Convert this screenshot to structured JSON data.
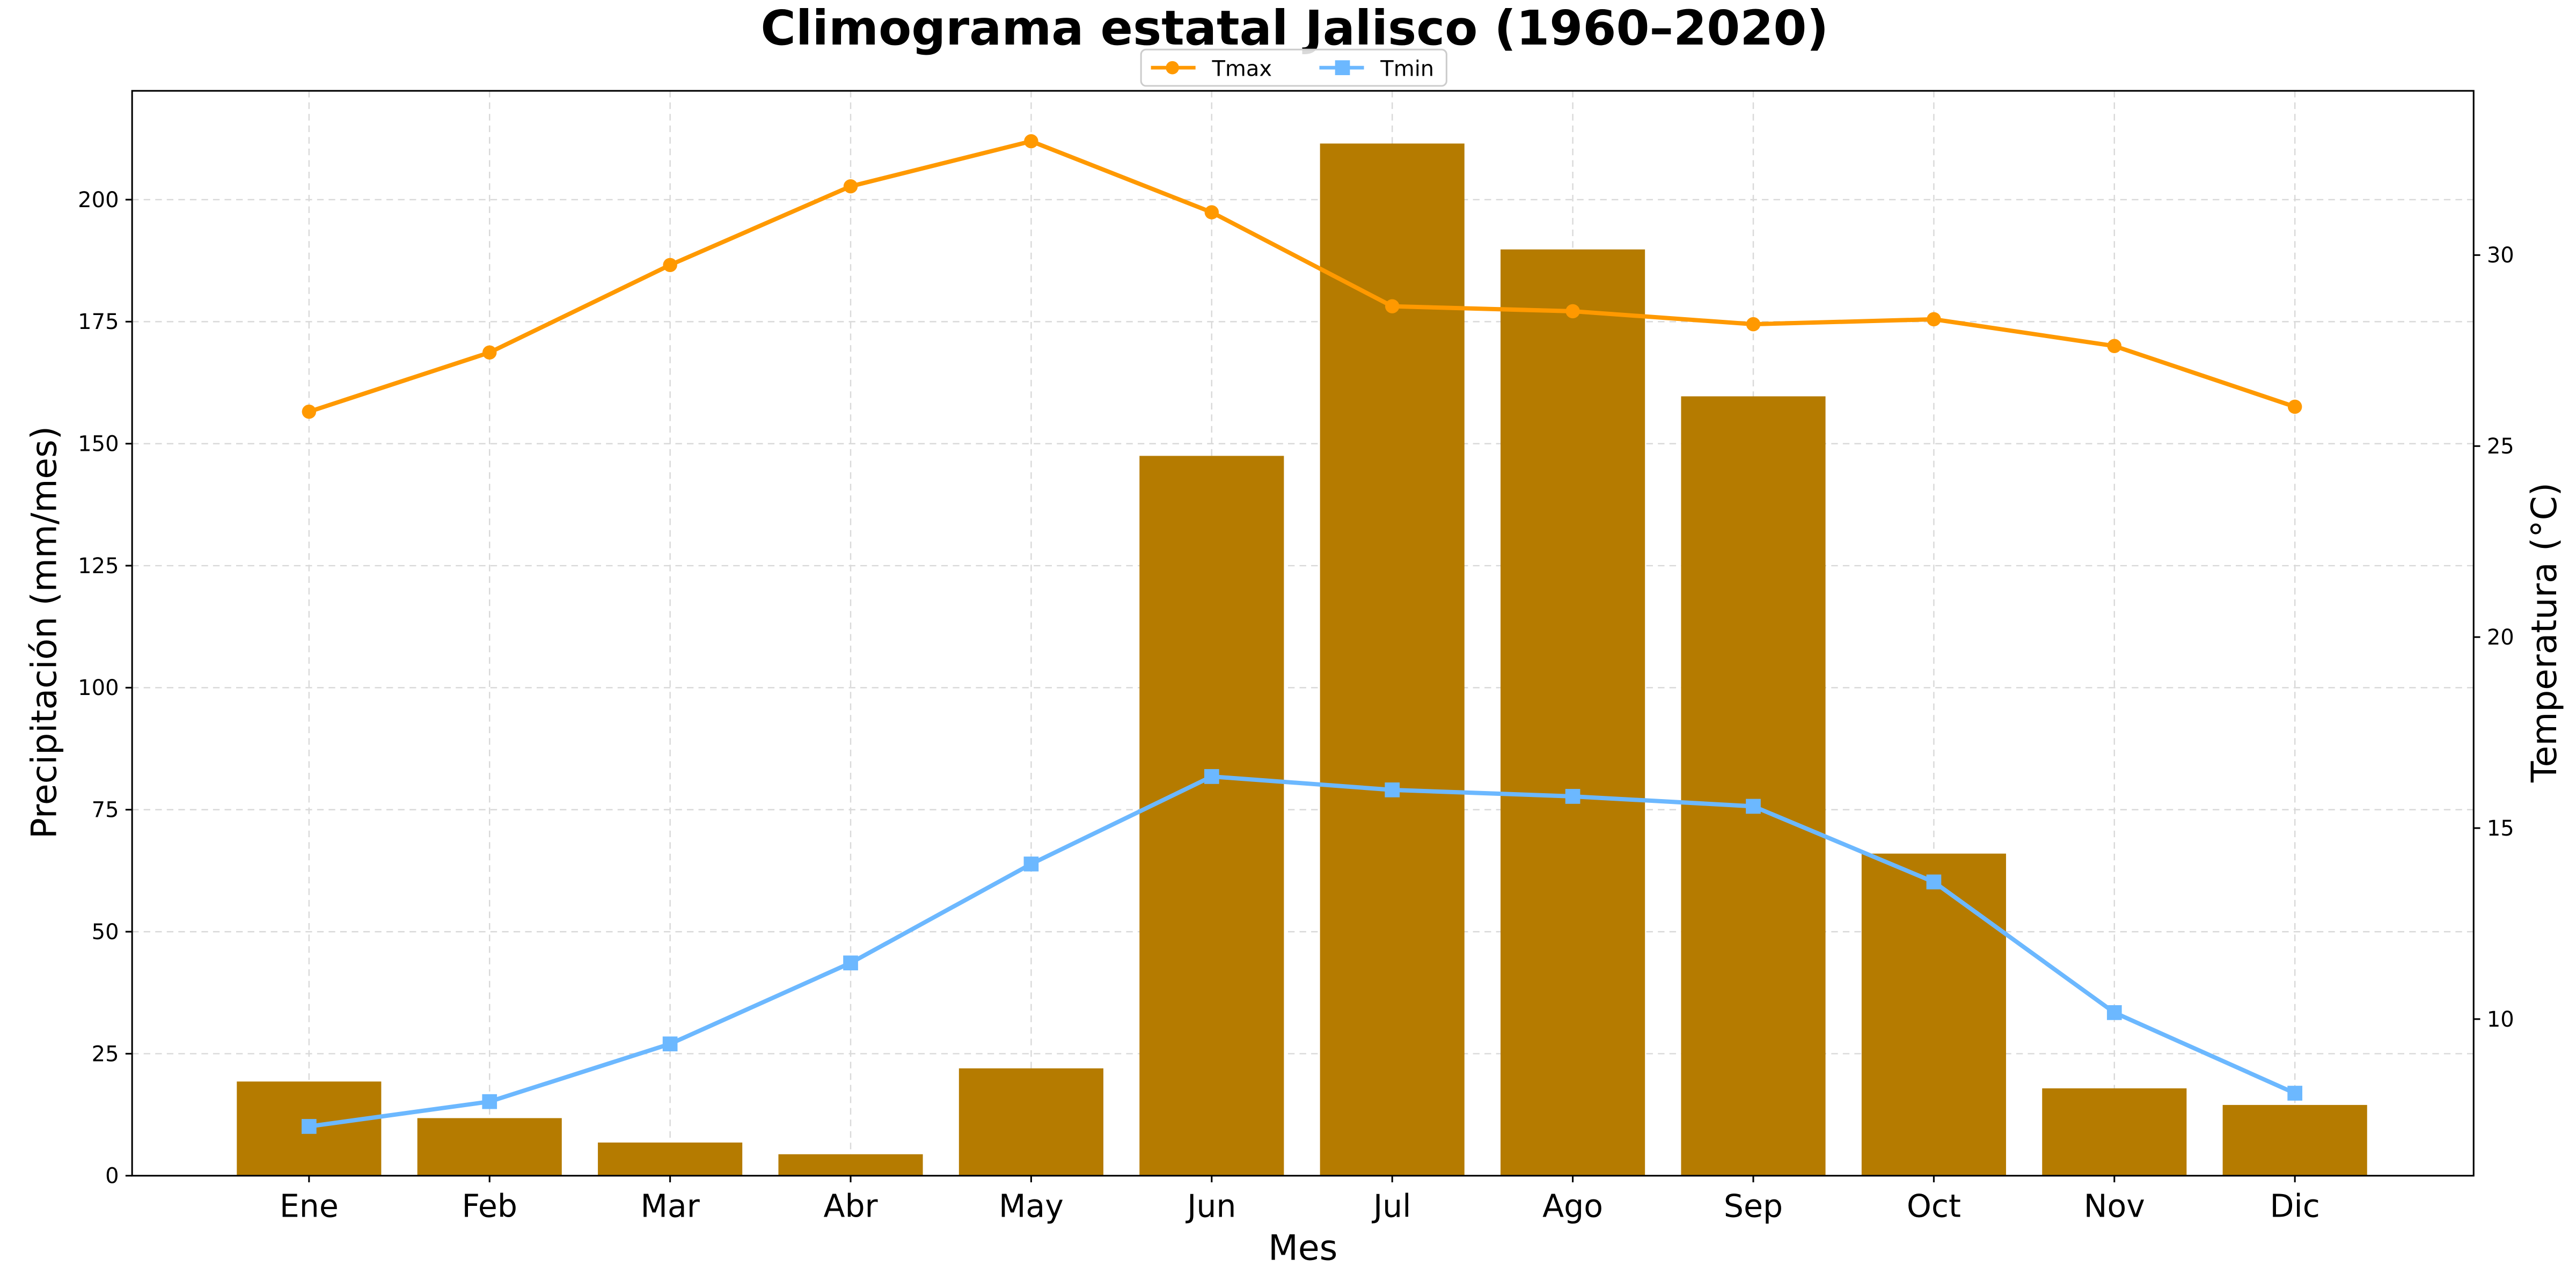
{
  "chart_data": {
    "type": "bar+line",
    "title": "Climograma estatal Jalisco (1960–2020)",
    "xlabel": "Mes",
    "ylabel": "Precipitación (mm/mes)",
    "ylabel_right": "Temperatura (°C)",
    "categories": [
      "Ene",
      "Feb",
      "Mar",
      "Abr",
      "May",
      "Jun",
      "Jul",
      "Ago",
      "Sep",
      "Oct",
      "Nov",
      "Dic"
    ],
    "precipitation": {
      "name": "Precipitación",
      "color": "#b57b00",
      "values": [
        19.3,
        11.8,
        6.8,
        4.4,
        22.0,
        147.5,
        211.5,
        189.8,
        159.7,
        66.0,
        17.9,
        14.5
      ]
    },
    "series": [
      {
        "name": "Tmax",
        "color": "#ff9900",
        "marker": "circle",
        "values": [
          25.9,
          27.45,
          29.74,
          31.8,
          32.98,
          31.12,
          28.66,
          28.53,
          28.19,
          28.32,
          27.62,
          26.03
        ]
      },
      {
        "name": "Tmin",
        "color": "#6cb8ff",
        "marker": "square",
        "values": [
          7.19,
          7.84,
          9.35,
          11.47,
          14.06,
          16.35,
          16.0,
          15.83,
          15.57,
          13.59,
          10.17,
          8.06
        ]
      }
    ],
    "ylim": [
      0,
      222.3
    ],
    "ylim_right": [
      5.9,
      34.3
    ],
    "yticks": [
      0,
      25,
      50,
      75,
      100,
      125,
      150,
      175,
      200
    ],
    "yticks_right": [
      10,
      15,
      20,
      25,
      30
    ],
    "grid": true,
    "legend_placement": "top-center"
  }
}
